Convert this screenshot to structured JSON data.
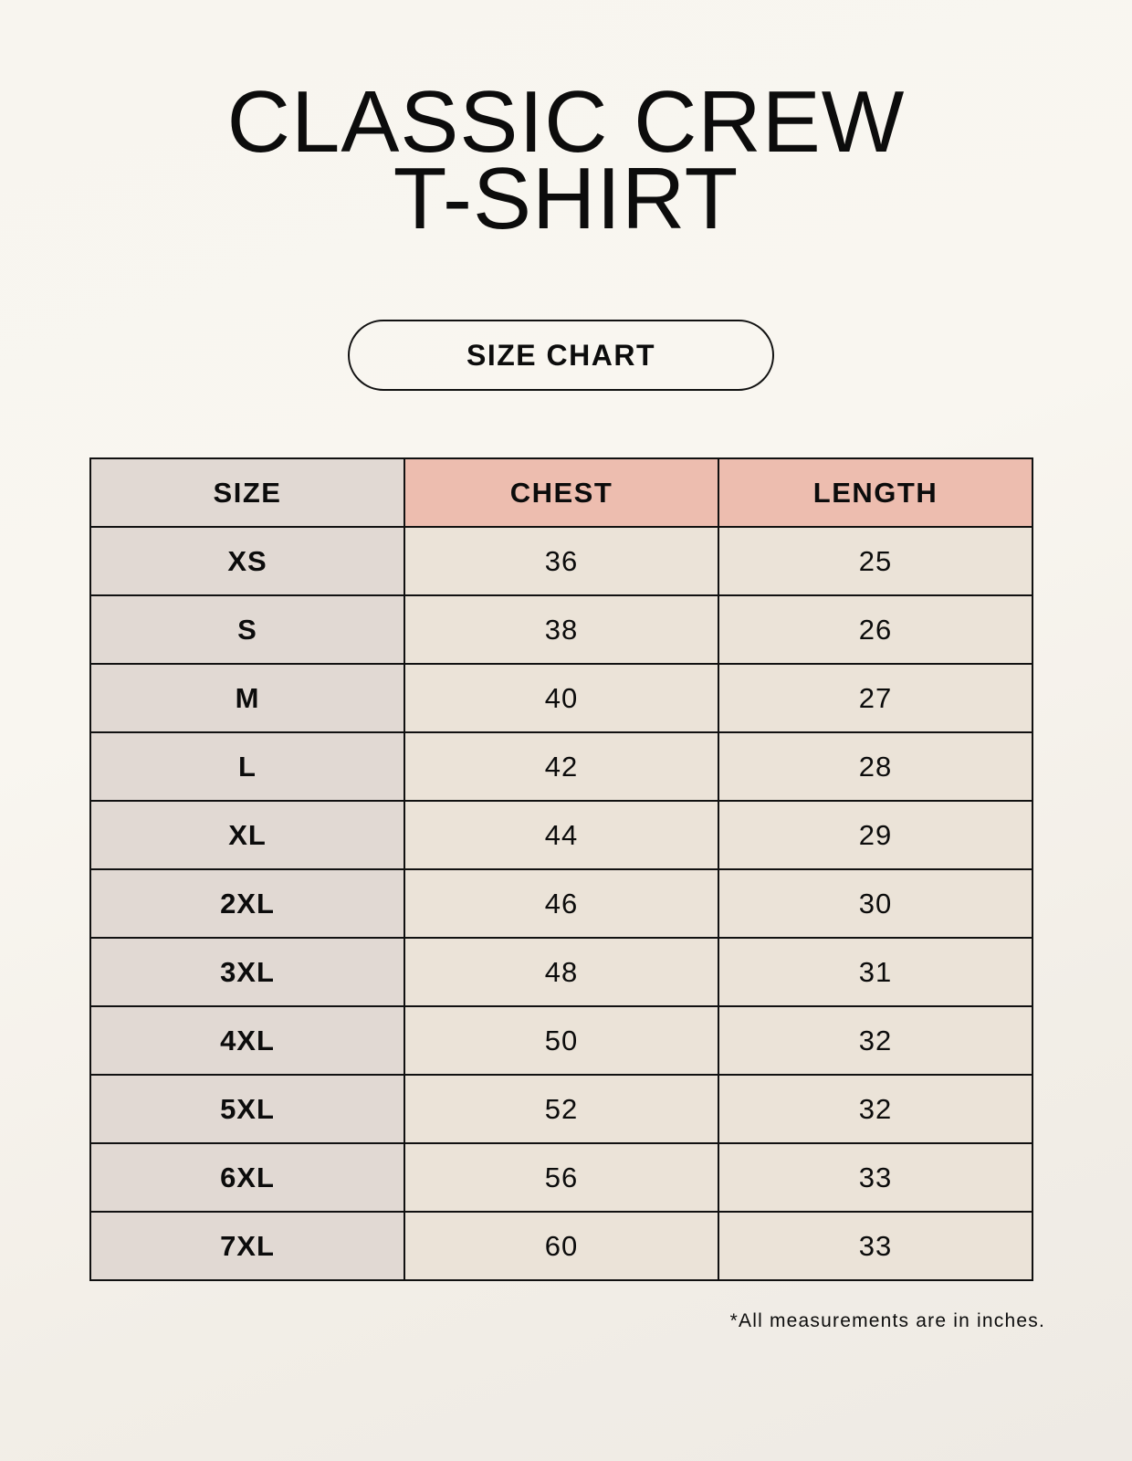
{
  "title": {
    "line1": "CLASSIC CREW",
    "line2": "T-SHIRT"
  },
  "badge": "SIZE CHART",
  "table": {
    "headers": [
      "SIZE",
      "CHEST",
      "LENGTH"
    ],
    "rows": [
      [
        "XS",
        "36",
        "25"
      ],
      [
        "S",
        "38",
        "26"
      ],
      [
        "M",
        "40",
        "27"
      ],
      [
        "L",
        "42",
        "28"
      ],
      [
        "XL",
        "44",
        "29"
      ],
      [
        "2XL",
        "46",
        "30"
      ],
      [
        "3XL",
        "48",
        "31"
      ],
      [
        "4XL",
        "50",
        "32"
      ],
      [
        "5XL",
        "52",
        "32"
      ],
      [
        "6XL",
        "56",
        "33"
      ],
      [
        "7XL",
        "60",
        "33"
      ]
    ]
  },
  "note": "*All measurements are in inches.",
  "colors": {
    "size_column": "#e1d9d3",
    "header_accent": "#edbdaf",
    "value_cells": "#ebe3d8"
  }
}
